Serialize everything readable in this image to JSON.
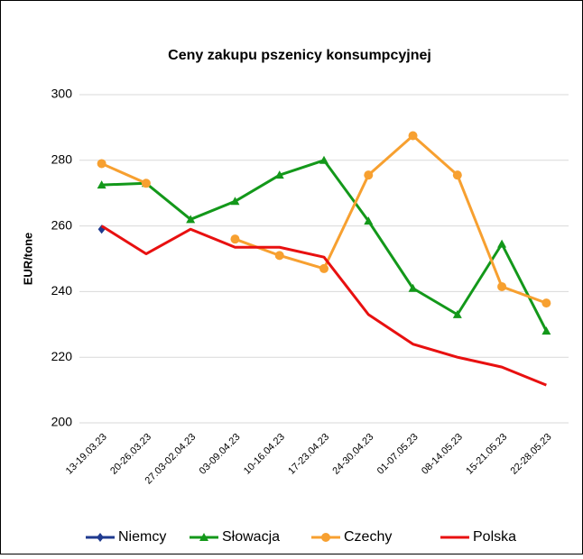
{
  "chart_data": {
    "type": "line",
    "title": "Ceny zakupu pszenicy konsumpcyjnej",
    "y_label": "EUR/tone",
    "categories": [
      "13-19.03.23",
      "20-26.03.23",
      "27.03-02.04.23",
      "03-09.04.23",
      "10-16.04.23",
      "17-23.04.23",
      "24-30.04.23",
      "01-07.05.23",
      "08-14.05.23",
      "15-21.05.23",
      "22-28.05.23"
    ],
    "series": [
      {
        "name": "Niemcy",
        "color": "#1f3a8f",
        "marker": "diamond",
        "values": [
          259,
          null,
          null,
          null,
          null,
          null,
          null,
          null,
          null,
          null,
          null
        ]
      },
      {
        "name": "Słowacja",
        "color": "#13981a",
        "marker": "triangle",
        "values": [
          272.5,
          273,
          262,
          267.5,
          275.5,
          280,
          261.5,
          241,
          233,
          254.5,
          228
        ]
      },
      {
        "name": "Czechy",
        "color": "#f7a030",
        "marker": "circle",
        "values": [
          279,
          273,
          null,
          256,
          251,
          247,
          275.5,
          287.5,
          275.5,
          241.5,
          236.5
        ]
      },
      {
        "name": "Polska",
        "color": "#e81010",
        "marker": "none",
        "values": [
          260,
          251.5,
          259,
          253.5,
          253.5,
          250.5,
          233,
          224,
          220,
          217,
          211.5
        ]
      }
    ],
    "ylim": [
      200,
      300
    ],
    "yticks": [
      200,
      220,
      240,
      260,
      280,
      300
    ],
    "grid": true,
    "legend": "bottom"
  }
}
